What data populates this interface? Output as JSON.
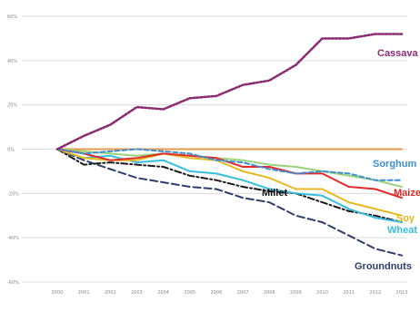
{
  "chart_data": {
    "type": "line",
    "title": "",
    "xlabel": "",
    "ylabel": "",
    "x": [
      "2000",
      "2001",
      "2002",
      "2003",
      "2004",
      "2005",
      "2006",
      "2007",
      "2008",
      "2009",
      "2010",
      "2011",
      "2012",
      "2013"
    ],
    "ylim": [
      -0.6,
      0.6
    ],
    "y_ticks": [
      {
        "value": 0.6,
        "label": "60%"
      },
      {
        "value": 0.4,
        "label": "40%"
      },
      {
        "value": 0.2,
        "label": "20%"
      },
      {
        "value": 0.0,
        "label": "0%"
      },
      {
        "value": -0.2,
        "label": "-20%"
      },
      {
        "value": -0.4,
        "label": "-40%"
      },
      {
        "value": -0.6,
        "label": "-60%"
      }
    ],
    "grid": true,
    "legend": "none",
    "series": [
      {
        "name": "Cassava",
        "color": "#8B2C73",
        "style": "dotted",
        "values": [
          0.0,
          0.06,
          0.11,
          0.19,
          0.18,
          0.23,
          0.24,
          0.29,
          0.31,
          0.38,
          0.5,
          0.5,
          0.52,
          0.52
        ]
      },
      {
        "name": "Sorghum",
        "color": "#3F8FD2",
        "style": "dashed",
        "values": [
          0.0,
          -0.02,
          -0.01,
          0.0,
          -0.01,
          -0.02,
          -0.05,
          -0.06,
          -0.09,
          -0.11,
          -0.1,
          -0.11,
          -0.14,
          -0.14
        ]
      },
      {
        "name": "Maize",
        "color": "#E02B2B",
        "style": "solid",
        "values": [
          0.0,
          -0.02,
          -0.05,
          -0.04,
          -0.02,
          -0.03,
          -0.04,
          -0.08,
          -0.08,
          -0.11,
          -0.11,
          -0.17,
          -0.18,
          -0.22
        ]
      },
      {
        "name": "Soy",
        "color": "#E8B820",
        "style": "solid",
        "values": [
          0.0,
          -0.04,
          -0.05,
          -0.05,
          -0.02,
          -0.04,
          -0.05,
          -0.1,
          -0.13,
          -0.18,
          -0.18,
          -0.24,
          -0.27,
          -0.3
        ]
      },
      {
        "name": "Wheat",
        "color": "#38BEDF",
        "style": "solid",
        "values": [
          0.0,
          -0.04,
          -0.03,
          -0.06,
          -0.05,
          -0.1,
          -0.11,
          -0.14,
          -0.18,
          -0.2,
          -0.21,
          -0.27,
          -0.31,
          -0.33
        ]
      },
      {
        "name": "Millet",
        "color": "#1a1a1a",
        "style": "dashdot",
        "values": [
          0.0,
          -0.07,
          -0.06,
          -0.07,
          -0.08,
          -0.12,
          -0.14,
          -0.17,
          -0.19,
          -0.2,
          -0.24,
          -0.28,
          -0.3,
          -0.33
        ]
      },
      {
        "name": "Groundnuts",
        "color": "#2E3E6E",
        "style": "dashed-long",
        "values": [
          0.0,
          -0.05,
          -0.09,
          -0.13,
          -0.15,
          -0.17,
          -0.18,
          -0.22,
          -0.24,
          -0.3,
          -0.33,
          -0.39,
          -0.45,
          -0.48
        ]
      },
      {
        "name": "",
        "color": "#E39A4F",
        "style": "solid",
        "values": [
          0.0,
          0.0,
          0.0,
          0.0,
          0.0,
          0.0,
          0.0,
          0.0,
          0.0,
          0.0,
          0.0,
          0.0,
          0.0,
          0.0
        ]
      },
      {
        "name": "",
        "color": "#9AD27A",
        "style": "solid",
        "values": [
          0.0,
          -0.01,
          -0.02,
          -0.03,
          -0.02,
          -0.03,
          -0.04,
          -0.05,
          -0.07,
          -0.08,
          -0.1,
          -0.12,
          -0.14,
          -0.17
        ]
      }
    ]
  }
}
